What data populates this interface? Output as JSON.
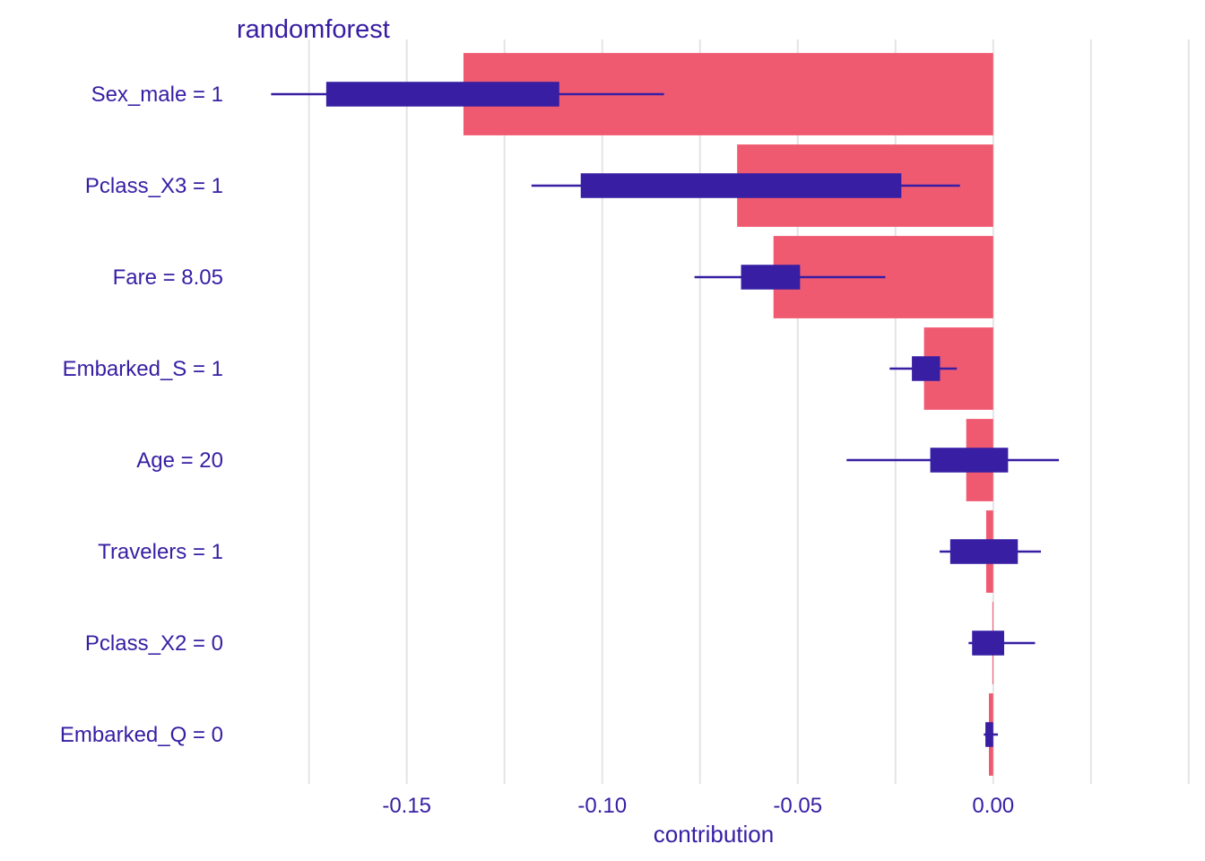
{
  "chart_data": {
    "type": "bar",
    "title": "randomforest",
    "xlabel": "contribution",
    "ylabel": "",
    "xlim": [
      -0.1935,
      0.0505
    ],
    "xticks": [
      -0.15,
      -0.1,
      -0.05,
      0.0
    ],
    "xtick_labels": [
      "-0.15",
      "-0.10",
      "-0.05",
      "0.00"
    ],
    "grid": true,
    "colors": {
      "bar": "#f05a71",
      "box": "#371ea3",
      "grid": "#e4e4e8",
      "text": "#371ea3"
    },
    "categories": [
      "Sex_male = 1",
      "Pclass_X3 = 1",
      "Fare = 8.05",
      "Embarked_S = 1",
      "Age = 20",
      "Travelers = 1",
      "Pclass_X2 = 0",
      "Embarked_Q = 0"
    ],
    "values": [
      -0.1355,
      -0.0655,
      -0.0562,
      -0.0177,
      -0.0069,
      -0.0018,
      -0.0002,
      -0.0011
    ],
    "boxplots": [
      {
        "min": -0.1847,
        "q1": -0.1706,
        "q3": -0.111,
        "max": -0.0842
      },
      {
        "min": -0.1181,
        "q1": -0.1055,
        "q3": -0.0235,
        "max": -0.0085
      },
      {
        "min": -0.0764,
        "q1": -0.0645,
        "q3": -0.0494,
        "max": -0.0276
      },
      {
        "min": -0.0265,
        "q1": -0.0208,
        "q3": -0.0136,
        "max": -0.0093
      },
      {
        "min": -0.0375,
        "q1": -0.0161,
        "q3": 0.0038,
        "max": 0.0168
      },
      {
        "min": -0.0137,
        "q1": -0.011,
        "q3": 0.0063,
        "max": 0.0122
      },
      {
        "min": -0.0063,
        "q1": -0.0054,
        "q3": 0.0028,
        "max": 0.0107
      },
      {
        "min": -0.0024,
        "q1": -0.002,
        "q3": 0.0,
        "max": 0.0012
      }
    ]
  }
}
